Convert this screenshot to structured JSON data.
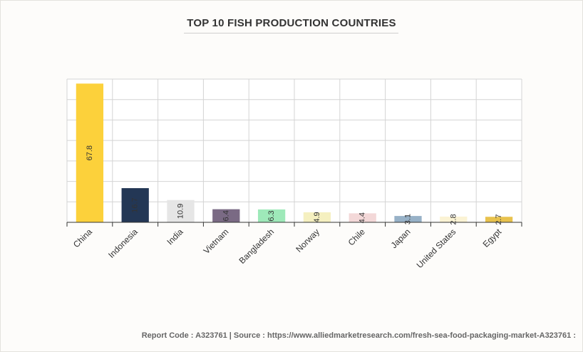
{
  "title": "TOP 10 FISH PRODUCTION COUNTRIES",
  "footer": "Report Code : A323761  |  Source : https://www.alliedmarketresearch.com/fresh-sea-food-packaging-market-A323761 :",
  "chart_data": {
    "type": "bar",
    "title": "TOP 10 FISH PRODUCTION COUNTRIES",
    "xlabel": "",
    "ylabel": "",
    "ylim": [
      0,
      70
    ],
    "grid": true,
    "categories": [
      "China",
      "Indonesia",
      "India",
      "Vietnam",
      "Bangladesh",
      "Norway",
      "Chile",
      "Japan",
      "United States",
      "Egypt"
    ],
    "values": [
      67.8,
      16.7,
      10.9,
      6.4,
      6.3,
      4.9,
      4.4,
      3.1,
      2.8,
      2.7
    ],
    "labels": [
      "67.8",
      "16.7",
      "10.9",
      "6.4",
      "6.3",
      "4.9",
      "4.4",
      "3.1",
      "2.8",
      "2.7"
    ],
    "colors": [
      "#fcd13b",
      "#233755",
      "#e6e6e6",
      "#7a6a84",
      "#9ee9b9",
      "#f5f0c0",
      "#f3d8d8",
      "#97b1c7",
      "#fbf3d4",
      "#e8c24d"
    ],
    "label_colors": [
      "#333333",
      "#333333",
      "#333333",
      "#333333",
      "#333333",
      "#333333",
      "#333333",
      "#333333",
      "#333333",
      "#333333"
    ]
  }
}
